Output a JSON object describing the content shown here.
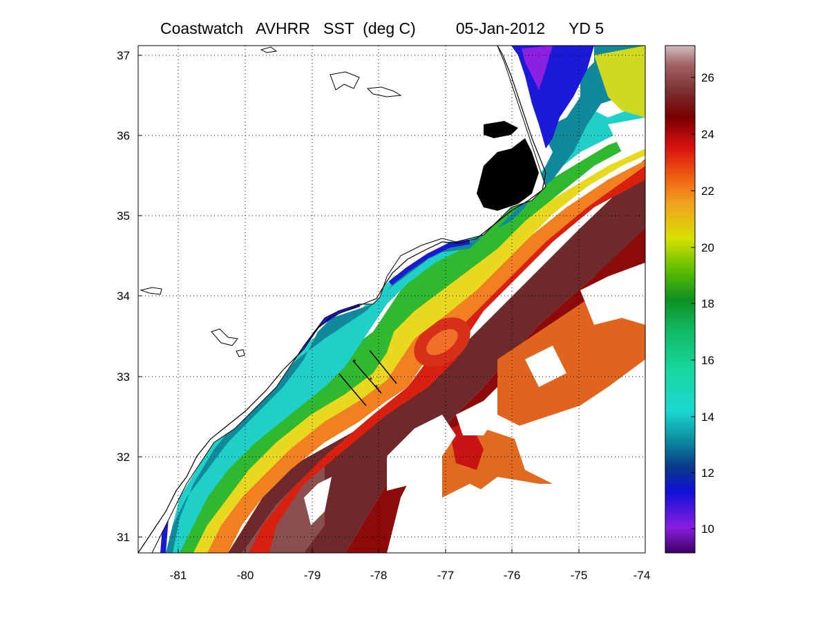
{
  "title": {
    "product": "Coastwatch   AVHRR   SST  (deg C)",
    "date": "05-Jan-2012",
    "yearday": "YD 5"
  },
  "map": {
    "lon_range": [
      -81.6,
      -74.0
    ],
    "lat_range": [
      30.8,
      37.1
    ],
    "xticks": [
      "-81",
      "-80",
      "-79",
      "-78",
      "-77",
      "-76",
      "-75",
      "-74"
    ],
    "yticks": [
      "31",
      "32",
      "33",
      "34",
      "35",
      "36",
      "37"
    ],
    "grid": "dotted"
  },
  "colorbar": {
    "range": [
      9,
      27
    ],
    "ticks": [
      "10",
      "12",
      "14",
      "16",
      "18",
      "20",
      "22",
      "24",
      "26"
    ],
    "colors": {
      "c9": "#3a0063",
      "c10": "#8a1ee0",
      "c11": "#1010d8",
      "c12": "#0a3a8a",
      "c13": "#0a8a9a",
      "c14": "#1ad8d0",
      "c15": "#18d8a0",
      "c16": "#10b860",
      "c18": "#109020",
      "c19": "#60c000",
      "c20": "#d8e000",
      "c21": "#f0a020",
      "c22": "#f06010",
      "c23": "#d81010",
      "c24": "#780000",
      "c25": "#7a3030",
      "c26": "#a06060",
      "c27": "#d0bcbc"
    }
  },
  "colors": {
    "land": "#ffffff",
    "lagoon": "#000000",
    "coast": "#000000"
  }
}
